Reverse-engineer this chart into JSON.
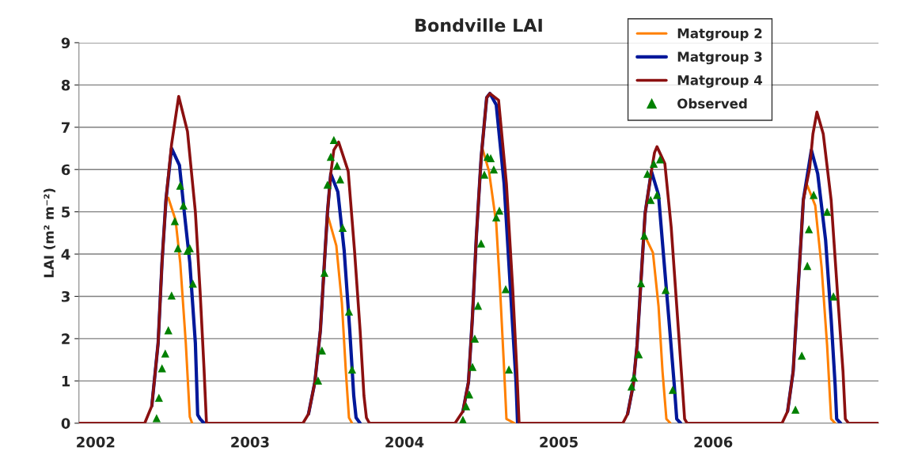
{
  "chart_data": {
    "type": "line",
    "title": "Bondville LAI",
    "ylabel": "LAI (m² m⁻²)",
    "xlim": [
      2001.892,
      2007.071
    ],
    "xticks": [
      2002,
      2003,
      2004,
      2005,
      2006
    ],
    "ylim": [
      0,
      9
    ],
    "yticks": [
      0,
      1,
      2,
      3,
      4,
      5,
      6,
      7,
      8,
      9
    ],
    "grid": "y",
    "legend": "top right",
    "marker": "none",
    "line_style": "solid",
    "series": [
      {
        "name": "Matgroup 2",
        "color": "#ff8000",
        "x": [
          2002.471,
          2002.518,
          2002.548,
          2002.584,
          2002.61,
          2002.625,
          2003.0,
          2003.507,
          2003.559,
          2003.595,
          2003.62,
          2003.641,
          2003.661,
          2004.0,
          2004.502,
          2004.548,
          2004.595,
          2004.62,
          2004.646,
          2004.661,
          2004.713,
          2005.0,
          2005.554,
          2005.61,
          2005.646,
          2005.672,
          2005.697,
          2005.723,
          2006.0,
          2006.61,
          2006.661,
          2006.702,
          2006.738,
          2006.764,
          2006.79
        ],
        "values": [
          5.33,
          4.8,
          3.8,
          1.9,
          0.15,
          0,
          null,
          4.87,
          4.2,
          2.85,
          1.27,
          0.13,
          0,
          null,
          6.54,
          5.96,
          4.72,
          3.15,
          1.27,
          0.1,
          0,
          null,
          4.46,
          4.03,
          2.77,
          1.22,
          0.1,
          0,
          null,
          5.62,
          5.15,
          3.7,
          1.84,
          0.1,
          0
        ]
      },
      {
        "name": "Matgroup 3",
        "color": "#00189a",
        "x": [
          2002.364,
          2002.405,
          2002.43,
          2002.456,
          2002.492,
          2002.543,
          2002.574,
          2002.61,
          2002.646,
          2002.661,
          2002.677,
          2002.702,
          2003.0,
          2003.379,
          2003.42,
          2003.456,
          2003.482,
          2003.502,
          2003.523,
          2003.569,
          2003.61,
          2003.646,
          2003.672,
          2003.687,
          2003.713,
          2004.0,
          2004.379,
          2004.415,
          2004.441,
          2004.466,
          2004.497,
          2004.533,
          2004.554,
          2004.595,
          2004.646,
          2004.687,
          2004.723,
          2004.733,
          2005.0,
          2005.446,
          2005.482,
          2005.507,
          2005.533,
          2005.559,
          2005.6,
          2005.646,
          2005.677,
          2005.713,
          2005.748,
          2005.764,
          2005.789,
          2006.0,
          2006.482,
          2006.518,
          2006.543,
          2006.569,
          2006.584,
          2006.636,
          2006.677,
          2006.728,
          2006.764,
          2006.79,
          2006.8,
          2006.825
        ],
        "values": [
          0.41,
          1.9,
          3.8,
          5.3,
          6.5,
          6.1,
          5.0,
          3.8,
          1.9,
          0.2,
          0.1,
          0,
          null,
          0.22,
          0.97,
          2.2,
          3.8,
          5.0,
          5.9,
          5.47,
          4.08,
          2.2,
          0.65,
          0.13,
          0,
          null,
          0.28,
          0.97,
          2.53,
          4.4,
          6.27,
          7.7,
          7.8,
          7.53,
          5.66,
          3.15,
          0.97,
          0,
          null,
          0.22,
          0.9,
          1.84,
          3.4,
          4.96,
          5.96,
          5.4,
          4.03,
          2.47,
          0.9,
          0.1,
          0,
          null,
          0.28,
          1.22,
          2.77,
          4.34,
          5.28,
          6.46,
          5.9,
          4.34,
          2.47,
          0.9,
          0.1,
          0
        ]
      },
      {
        "name": "Matgroup 4",
        "color": "#8b1010",
        "x": [
          2001.892,
          2002.318,
          2002.364,
          2002.405,
          2002.43,
          2002.456,
          2002.492,
          2002.538,
          2002.595,
          2002.646,
          2002.677,
          2002.702,
          2002.718,
          2003.343,
          2003.379,
          2003.42,
          2003.456,
          2003.482,
          2003.502,
          2003.523,
          2003.543,
          2003.574,
          2003.636,
          2003.677,
          2003.713,
          2003.738,
          2003.754,
          2003.774,
          2004.328,
          2004.379,
          2004.415,
          2004.441,
          2004.466,
          2004.497,
          2004.533,
          2004.554,
          2004.61,
          2004.661,
          2004.702,
          2004.728,
          2004.743,
          2005.415,
          2005.446,
          2005.482,
          2005.507,
          2005.533,
          2005.559,
          2005.6,
          2005.62,
          2005.636,
          2005.687,
          2005.728,
          2005.764,
          2005.8,
          2005.815,
          2005.831,
          2006.446,
          2006.482,
          2006.518,
          2006.543,
          2006.569,
          2006.584,
          2006.625,
          2006.646,
          2006.672,
          2006.713,
          2006.764,
          2006.805,
          2006.841,
          2006.856,
          2006.877,
          2007.071
        ],
        "values": [
          0,
          0,
          0.41,
          1.9,
          3.8,
          5.3,
          6.6,
          7.73,
          6.9,
          5.0,
          3.1,
          1.3,
          0,
          0,
          0.22,
          0.97,
          2.2,
          3.8,
          5.0,
          5.9,
          6.46,
          6.65,
          5.96,
          4.08,
          2.2,
          0.65,
          0.13,
          0,
          0,
          0.28,
          0.97,
          2.53,
          4.4,
          6.27,
          7.7,
          7.8,
          7.64,
          5.66,
          3.15,
          1.27,
          0,
          0,
          0.22,
          0.9,
          1.84,
          3.4,
          4.96,
          5.96,
          6.4,
          6.54,
          6.14,
          4.64,
          2.77,
          0.9,
          0.1,
          0,
          0,
          0.28,
          1.22,
          2.77,
          4.34,
          5.28,
          6.03,
          6.84,
          7.36,
          6.84,
          5.28,
          3.09,
          1.22,
          0.1,
          0,
          0
        ]
      },
      {
        "name": "Observed",
        "type": "scatter",
        "marker": "triangle",
        "color": "#008000",
        "x": [
          2002.395,
          2002.41,
          2002.43,
          2002.451,
          2002.471,
          2002.492,
          2002.513,
          2002.533,
          2002.548,
          2002.569,
          2002.595,
          2002.61,
          2002.63,
          2003.441,
          2003.466,
          2003.482,
          2003.502,
          2003.523,
          2003.543,
          2003.564,
          2003.584,
          2003.6,
          2003.641,
          2003.661,
          2004.379,
          2004.4,
          2004.42,
          2004.441,
          2004.456,
          2004.477,
          2004.497,
          2004.518,
          2004.538,
          2004.559,
          2004.579,
          2004.595,
          2004.615,
          2004.656,
          2004.677,
          2005.471,
          2005.487,
          2005.518,
          2005.533,
          2005.554,
          2005.574,
          2005.595,
          2005.615,
          2005.636,
          2005.656,
          2005.692,
          2005.738,
          2006.533,
          2006.574,
          2006.61,
          2006.62,
          2006.651,
          2006.738,
          2006.779
        ],
        "values": [
          0.12,
          0.6,
          1.3,
          1.65,
          2.2,
          3.02,
          4.78,
          4.14,
          5.62,
          5.15,
          4.08,
          4.14,
          3.3,
          1.01,
          1.72,
          3.56,
          5.64,
          6.3,
          6.7,
          6.09,
          5.77,
          4.62,
          2.64,
          1.27,
          0.08,
          0.4,
          0.68,
          1.33,
          2.0,
          2.78,
          4.25,
          5.88,
          6.3,
          6.27,
          6.0,
          4.87,
          5.03,
          3.17,
          1.27,
          0.87,
          1.08,
          1.63,
          3.31,
          4.44,
          5.9,
          5.28,
          6.14,
          5.4,
          6.24,
          3.15,
          0.79,
          0.32,
          1.6,
          3.72,
          4.59,
          5.4,
          5.0,
          3.0
        ]
      }
    ]
  }
}
